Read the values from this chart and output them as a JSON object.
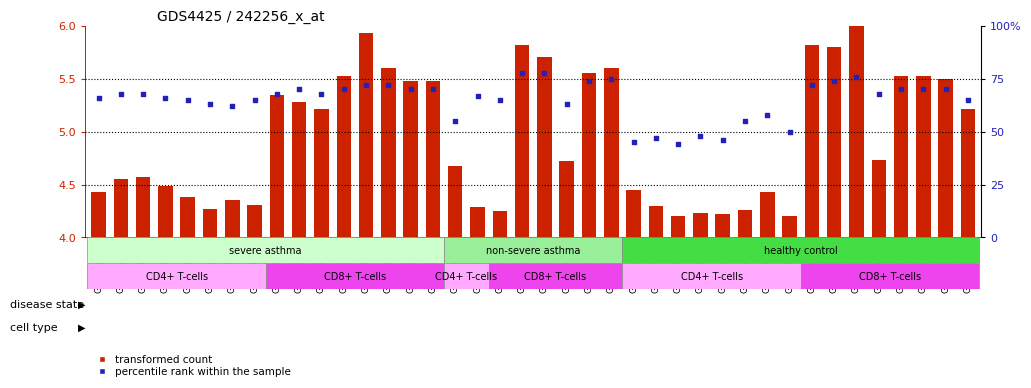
{
  "title": "GDS4425 / 242256_x_at",
  "samples": [
    "GSM788311",
    "GSM788312",
    "GSM788313",
    "GSM788314",
    "GSM788315",
    "GSM788316",
    "GSM788317",
    "GSM788318",
    "GSM788323",
    "GSM788324",
    "GSM788325",
    "GSM788326",
    "GSM788327",
    "GSM788328",
    "GSM788329",
    "GSM788330",
    "GSM788299",
    "GSM788300",
    "GSM788301",
    "GSM788302",
    "GSM788319",
    "GSM788320",
    "GSM788321",
    "GSM788322",
    "GSM788303",
    "GSM788304",
    "GSM788305",
    "GSM788306",
    "GSM788307",
    "GSM788308",
    "GSM788309",
    "GSM788310",
    "GSM788331",
    "GSM788332",
    "GSM788333",
    "GSM788334",
    "GSM788335",
    "GSM788336",
    "GSM788337",
    "GSM788338"
  ],
  "bar_values": [
    4.43,
    4.55,
    4.57,
    4.49,
    4.38,
    4.27,
    4.35,
    4.31,
    5.35,
    5.28,
    5.22,
    5.53,
    5.93,
    5.6,
    5.48,
    5.48,
    4.68,
    4.29,
    4.25,
    5.82,
    5.71,
    4.72,
    5.56,
    5.6,
    4.45,
    4.3,
    4.2,
    4.23,
    4.22,
    4.26,
    4.43,
    4.2,
    5.82,
    5.8,
    6.05,
    4.73,
    5.53,
    5.53,
    5.5,
    5.22
  ],
  "percentile_values": [
    66,
    68,
    68,
    66,
    65,
    63,
    62,
    65,
    68,
    70,
    68,
    70,
    72,
    72,
    70,
    70,
    55,
    67,
    65,
    78,
    78,
    63,
    74,
    75,
    45,
    47,
    44,
    48,
    46,
    55,
    58,
    50,
    72,
    74,
    76,
    68,
    70,
    70,
    70,
    65
  ],
  "disease_state": [
    {
      "label": "severe asthma",
      "start": 0,
      "end": 16,
      "color": "#ccffcc"
    },
    {
      "label": "non-severe asthma",
      "start": 16,
      "end": 24,
      "color": "#99ee99"
    },
    {
      "label": "healthy control",
      "start": 24,
      "end": 40,
      "color": "#44dd44"
    }
  ],
  "cell_type": [
    {
      "label": "CD4+ T-cells",
      "start": 0,
      "end": 8,
      "color": "#ffaaff"
    },
    {
      "label": "CD8+ T-cells",
      "start": 8,
      "end": 16,
      "color": "#ee44ee"
    },
    {
      "label": "CD4+ T-cells",
      "start": 16,
      "end": 18,
      "color": "#ffaaff"
    },
    {
      "label": "CD8+ T-cells",
      "start": 18,
      "end": 24,
      "color": "#ee44ee"
    },
    {
      "label": "CD4+ T-cells",
      "start": 24,
      "end": 32,
      "color": "#ffaaff"
    },
    {
      "label": "CD8+ T-cells",
      "start": 32,
      "end": 40,
      "color": "#ee44ee"
    }
  ],
  "bar_color": "#cc2200",
  "dot_color": "#2222bb",
  "ylim_left": [
    4.0,
    6.0
  ],
  "ylim_right": [
    0,
    100
  ],
  "yticks_left": [
    4.0,
    4.5,
    5.0,
    5.5,
    6.0
  ],
  "yticks_right": [
    0,
    25,
    50,
    75,
    100
  ],
  "ytick_right_labels": [
    "0",
    "25",
    "50",
    "75",
    "100%"
  ],
  "grid_lines": [
    4.5,
    5.0,
    5.5
  ],
  "title_fontsize": 10,
  "tick_fontsize": 6.5,
  "label_fontsize": 8,
  "n_samples": 40
}
